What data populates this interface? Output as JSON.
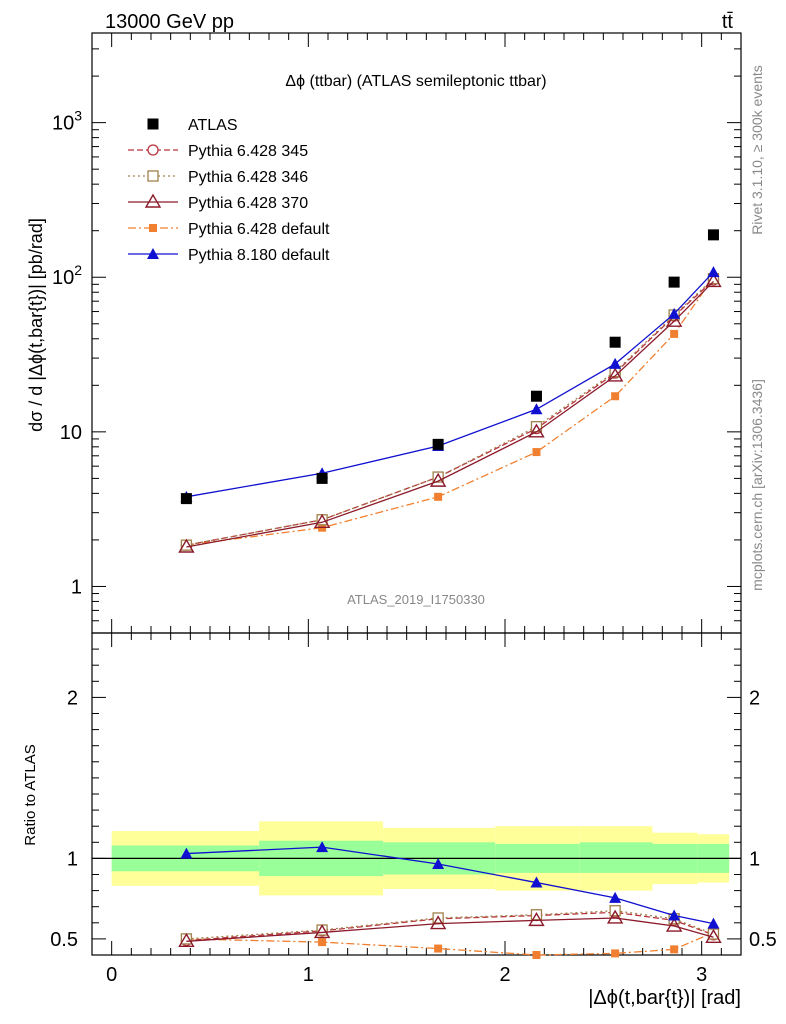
{
  "header": {
    "energy_label": "13000 GeV pp",
    "process_label": "tt̄"
  },
  "side_labels": {
    "rivet": "Rivet 3.1.10, ≥ 300k events",
    "source": "mcplots.cern.ch [arXiv:1306.3436]"
  },
  "chart_data": [
    {
      "type": "line",
      "title": "Δϕ (ttbar) (ATLAS semileptonic ttbar)",
      "ylabel": "dσ / d |Δϕ(t,bar{t})| [pb/rad]",
      "xlabel": "",
      "analysis_label": "ATLAS_2019_I1750330",
      "yscale": "log",
      "ylim": [
        0.5,
        3800
      ],
      "xlim": [
        -0.1,
        3.2
      ],
      "yticks": [
        "1",
        "10",
        "10^2",
        "10^3"
      ],
      "x": [
        0.38,
        1.07,
        1.66,
        2.16,
        2.56,
        2.86,
        3.06
      ],
      "legend": {
        "position": "top-left"
      },
      "series": [
        {
          "name": "ATLAS",
          "style": "data",
          "color": "#000000",
          "values": [
            3.7,
            5.0,
            8.3,
            17.0,
            38.0,
            93.0,
            188.0
          ]
        },
        {
          "name": "Pythia 6.428 345",
          "style": "dashed",
          "marker": "open-circle",
          "color": "#b8323c",
          "values": [
            1.85,
            2.7,
            5.1,
            10.5,
            24.0,
            56.0,
            96.0
          ]
        },
        {
          "name": "Pythia 6.428 346",
          "style": "dotted",
          "marker": "open-square",
          "color": "#a0804a",
          "values": [
            1.85,
            2.7,
            5.1,
            10.8,
            24.5,
            57.0,
            98.0
          ]
        },
        {
          "name": "Pythia 6.428 370",
          "style": "solid",
          "marker": "open-triangle",
          "color": "#8b1a2a",
          "values": [
            1.8,
            2.6,
            4.8,
            10.0,
            23.0,
            52.0,
            94.0
          ]
        },
        {
          "name": "Pythia 6.428 default",
          "style": "dash-dot",
          "marker": "filled-square",
          "color": "#f08030",
          "values": [
            1.85,
            2.4,
            3.8,
            7.4,
            17.0,
            43.0,
            100.0
          ]
        },
        {
          "name": "Pythia 8.180 default",
          "style": "solid",
          "marker": "filled-triangle",
          "color": "#1010d0",
          "values": [
            3.8,
            5.4,
            8.1,
            14.0,
            27.5,
            58.0,
            108.0
          ]
        }
      ]
    },
    {
      "type": "line",
      "title": "",
      "ylabel": "Ratio to ATLAS",
      "xlabel": "|Δϕ(t,bar{t})| [rad]",
      "ylim": [
        0.4,
        2.4
      ],
      "xlim": [
        -0.1,
        3.2
      ],
      "yticks": [
        0.5,
        1,
        2
      ],
      "xticks": [
        0,
        1,
        2,
        3
      ],
      "reference_line": 1,
      "bins": [
        [
          0.0,
          0.75
        ],
        [
          0.75,
          1.38
        ],
        [
          1.38,
          1.95
        ],
        [
          1.95,
          2.38
        ],
        [
          2.38,
          2.75
        ],
        [
          2.75,
          2.98
        ],
        [
          2.98,
          3.14
        ]
      ],
      "band_inner": [
        [
          0.92,
          1.08
        ],
        [
          0.89,
          1.11
        ],
        [
          0.9,
          1.1
        ],
        [
          0.91,
          1.09
        ],
        [
          0.91,
          1.1
        ],
        [
          0.91,
          1.09
        ],
        [
          0.91,
          1.09
        ]
      ],
      "band_outer": [
        [
          0.83,
          1.17
        ],
        [
          0.77,
          1.23
        ],
        [
          0.81,
          1.19
        ],
        [
          0.8,
          1.2
        ],
        [
          0.8,
          1.2
        ],
        [
          0.84,
          1.16
        ],
        [
          0.85,
          1.15
        ]
      ],
      "band_colors": {
        "inner": "#99ff99",
        "outer": "#ffff99"
      },
      "x": [
        0.38,
        1.07,
        1.66,
        2.16,
        2.56,
        2.86,
        3.06
      ],
      "series": [
        {
          "name": "Pythia 6.428 345",
          "style": "dashed",
          "marker": "open-circle",
          "color": "#b8323c",
          "values": [
            0.49,
            0.55,
            0.625,
            0.645,
            0.665,
            0.615,
            0.525
          ]
        },
        {
          "name": "Pythia 6.428 346",
          "style": "dotted",
          "marker": "open-square",
          "color": "#a0804a",
          "values": [
            0.5,
            0.555,
            0.63,
            0.65,
            0.675,
            0.625,
            0.53
          ]
        },
        {
          "name": "Pythia 6.428 370",
          "style": "solid",
          "marker": "open-triangle",
          "color": "#8b1a2a",
          "values": [
            0.485,
            0.54,
            0.595,
            0.615,
            0.63,
            0.58,
            0.51
          ]
        },
        {
          "name": "Pythia 6.428 default",
          "style": "dash-dot",
          "marker": "filled-square",
          "color": "#f08030",
          "values": [
            0.5,
            0.48,
            0.44,
            0.4,
            0.41,
            0.435,
            0.54
          ]
        },
        {
          "name": "Pythia 8.180 default",
          "style": "solid",
          "marker": "filled-triangle",
          "color": "#1010d0",
          "values": [
            1.03,
            1.07,
            0.965,
            0.85,
            0.755,
            0.645,
            0.595
          ]
        }
      ]
    }
  ]
}
